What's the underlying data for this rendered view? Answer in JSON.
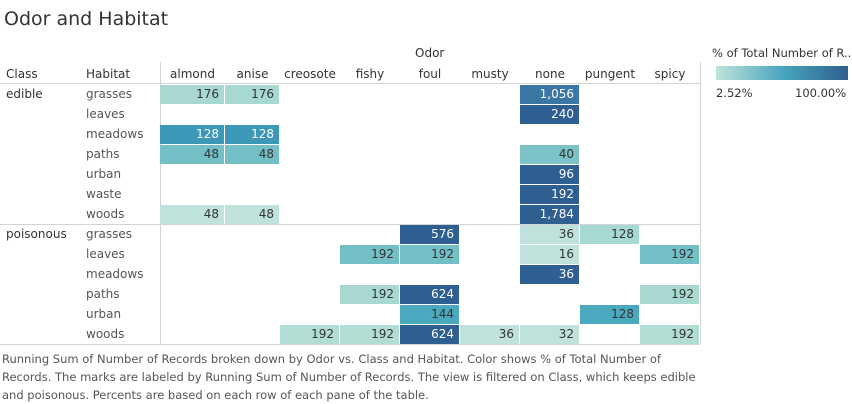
{
  "title": "Odor and Habitat",
  "col_group_header": "Odor",
  "row_headers": [
    "Class",
    "Habitat"
  ],
  "legend": {
    "title": "% of Total Number of R..",
    "min_label": "2.52%",
    "max_label": "100.00%",
    "colors": [
      "#bfe3dc",
      "#49a7bd",
      "#2f5e90"
    ]
  },
  "caption": "Running Sum of Number of Records broken down by Odor vs. Class and Habitat.  Color shows % of Total Number of Records. The marks are labeled by Running Sum of Number of Records. The view is filtered on Class, which keeps edible and poisonous. Percents are based on each row of each pane of the table.",
  "chart_data": {
    "type": "heatmap",
    "columns": [
      "almond",
      "anise",
      "creosote",
      "fishy",
      "foul",
      "musty",
      "none",
      "pungent",
      "spicy"
    ],
    "classes": [
      {
        "name": "edible",
        "habitats": [
          "grasses",
          "leaves",
          "meadows",
          "paths",
          "urban",
          "waste",
          "woods"
        ]
      },
      {
        "name": "poisonous",
        "habitats": [
          "grasses",
          "leaves",
          "meadows",
          "paths",
          "urban",
          "woods"
        ]
      }
    ],
    "cells": [
      {
        "row": 0,
        "col": "almond",
        "value": 176,
        "label": "176",
        "color": "#a8d9d1"
      },
      {
        "row": 0,
        "col": "anise",
        "value": 176,
        "label": "176",
        "color": "#a8d9d1"
      },
      {
        "row": 0,
        "col": "none",
        "value": 1056,
        "label": "1,056",
        "color": "#3b77a4"
      },
      {
        "row": 1,
        "col": "none",
        "value": 240,
        "label": "240",
        "color": "#2f5e90"
      },
      {
        "row": 2,
        "col": "almond",
        "value": 128,
        "label": "128",
        "color": "#3c98b7"
      },
      {
        "row": 2,
        "col": "anise",
        "value": 128,
        "label": "128",
        "color": "#3c98b7"
      },
      {
        "row": 3,
        "col": "almond",
        "value": 48,
        "label": "48",
        "color": "#72bfc6"
      },
      {
        "row": 3,
        "col": "anise",
        "value": 48,
        "label": "48",
        "color": "#72bfc6"
      },
      {
        "row": 3,
        "col": "none",
        "value": 40,
        "label": "40",
        "color": "#7cc3c7"
      },
      {
        "row": 4,
        "col": "none",
        "value": 96,
        "label": "96",
        "color": "#2f5e90"
      },
      {
        "row": 5,
        "col": "none",
        "value": 192,
        "label": "192",
        "color": "#2f5e90"
      },
      {
        "row": 6,
        "col": "almond",
        "value": 48,
        "label": "48",
        "color": "#bfe3dc"
      },
      {
        "row": 6,
        "col": "anise",
        "value": 48,
        "label": "48",
        "color": "#bfe3dc"
      },
      {
        "row": 6,
        "col": "none",
        "value": 1784,
        "label": "1,784",
        "color": "#2f5e90"
      },
      {
        "row": 7,
        "col": "foul",
        "value": 576,
        "label": "576",
        "color": "#2f5e90"
      },
      {
        "row": 7,
        "col": "none",
        "value": 36,
        "label": "36",
        "color": "#bfe3dc"
      },
      {
        "row": 7,
        "col": "pungent",
        "value": 128,
        "label": "128",
        "color": "#a5d9d1"
      },
      {
        "row": 8,
        "col": "fishy",
        "value": 192,
        "label": "192",
        "color": "#73bfc6"
      },
      {
        "row": 8,
        "col": "foul",
        "value": 192,
        "label": "192",
        "color": "#73bfc6"
      },
      {
        "row": 8,
        "col": "none",
        "value": 16,
        "label": "16",
        "color": "#bfe3dc"
      },
      {
        "row": 8,
        "col": "spicy",
        "value": 192,
        "label": "192",
        "color": "#73bfc6"
      },
      {
        "row": 9,
        "col": "none",
        "value": 36,
        "label": "36",
        "color": "#2f5e90"
      },
      {
        "row": 10,
        "col": "fishy",
        "value": 192,
        "label": "192",
        "color": "#a8d9d1"
      },
      {
        "row": 10,
        "col": "foul",
        "value": 624,
        "label": "624",
        "color": "#2f5e90"
      },
      {
        "row": 10,
        "col": "spicy",
        "value": 192,
        "label": "192",
        "color": "#a8d9d1"
      },
      {
        "row": 11,
        "col": "foul",
        "value": 144,
        "label": "144",
        "color": "#4aa9be"
      },
      {
        "row": 11,
        "col": "pungent",
        "value": 128,
        "label": "128",
        "color": "#4aa9be"
      },
      {
        "row": 12,
        "col": "creosote",
        "value": 192,
        "label": "192",
        "color": "#b2ddd5"
      },
      {
        "row": 12,
        "col": "fishy",
        "value": 192,
        "label": "192",
        "color": "#b2ddd5"
      },
      {
        "row": 12,
        "col": "foul",
        "value": 624,
        "label": "624",
        "color": "#2f5e90"
      },
      {
        "row": 12,
        "col": "musty",
        "value": 36,
        "label": "36",
        "color": "#bfe3dc"
      },
      {
        "row": 12,
        "col": "none",
        "value": 32,
        "label": "32",
        "color": "#bfe3dc"
      },
      {
        "row": 12,
        "col": "spicy",
        "value": 192,
        "label": "192",
        "color": "#b2ddd5"
      }
    ]
  }
}
